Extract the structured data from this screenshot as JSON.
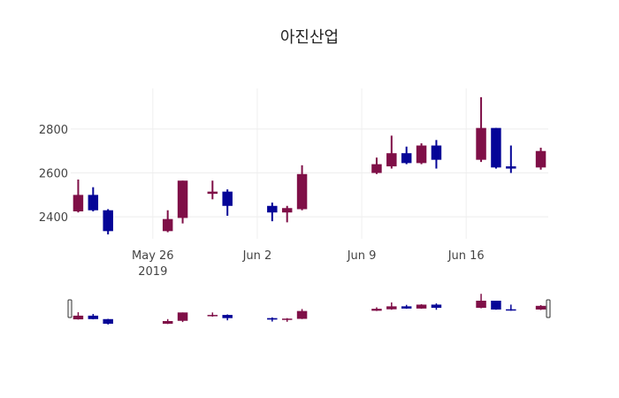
{
  "chart_data": {
    "type": "candlestick",
    "title": "아진산업",
    "x_ticks": [
      {
        "date": "2019-05-26",
        "label": "May 26",
        "sublabel": "2019"
      },
      {
        "date": "2019-06-02",
        "label": "Jun 2",
        "sublabel": ""
      },
      {
        "date": "2019-06-09",
        "label": "Jun 9",
        "sublabel": ""
      },
      {
        "date": "2019-06-16",
        "label": "Jun 16",
        "sublabel": ""
      }
    ],
    "y_ticks": [
      2400,
      2600,
      2800
    ],
    "ylim": [
      2300,
      2985
    ],
    "xlim": [
      "2019-05-20T12:00",
      "2019-06-21T12:00"
    ],
    "colors": {
      "increasing": "#7F0F47",
      "decreasing": "#050597",
      "grid": "#eeeeee"
    },
    "candles": [
      {
        "date": "2019-05-21",
        "open": 2425,
        "high": 2570,
        "low": 2420,
        "close": 2500
      },
      {
        "date": "2019-05-22",
        "open": 2500,
        "high": 2535,
        "low": 2425,
        "close": 2430
      },
      {
        "date": "2019-05-23",
        "open": 2430,
        "high": 2435,
        "low": 2320,
        "close": 2335
      },
      {
        "date": "2019-05-27",
        "open": 2335,
        "high": 2430,
        "low": 2330,
        "close": 2390
      },
      {
        "date": "2019-05-28",
        "open": 2395,
        "high": 2565,
        "low": 2370,
        "close": 2565
      },
      {
        "date": "2019-05-30",
        "open": 2505,
        "high": 2565,
        "low": 2480,
        "close": 2515
      },
      {
        "date": "2019-05-31",
        "open": 2515,
        "high": 2525,
        "low": 2405,
        "close": 2450
      },
      {
        "date": "2019-06-03",
        "open": 2450,
        "high": 2465,
        "low": 2380,
        "close": 2420
      },
      {
        "date": "2019-06-04",
        "open": 2420,
        "high": 2450,
        "low": 2375,
        "close": 2440
      },
      {
        "date": "2019-06-05",
        "open": 2435,
        "high": 2635,
        "low": 2430,
        "close": 2595
      },
      {
        "date": "2019-06-10",
        "open": 2600,
        "high": 2670,
        "low": 2595,
        "close": 2640
      },
      {
        "date": "2019-06-11",
        "open": 2630,
        "high": 2770,
        "low": 2620,
        "close": 2690
      },
      {
        "date": "2019-06-12",
        "open": 2690,
        "high": 2720,
        "low": 2640,
        "close": 2645
      },
      {
        "date": "2019-06-13",
        "open": 2645,
        "high": 2735,
        "low": 2640,
        "close": 2725
      },
      {
        "date": "2019-06-14",
        "open": 2725,
        "high": 2750,
        "low": 2620,
        "close": 2660
      },
      {
        "date": "2019-06-17",
        "open": 2660,
        "high": 2945,
        "low": 2650,
        "close": 2805
      },
      {
        "date": "2019-06-18",
        "open": 2805,
        "high": 2805,
        "low": 2620,
        "close": 2625
      },
      {
        "date": "2019-06-19",
        "open": 2630,
        "high": 2725,
        "low": 2600,
        "close": 2620
      },
      {
        "date": "2019-06-21",
        "open": 2625,
        "high": 2715,
        "low": 2615,
        "close": 2700
      }
    ],
    "rangeslider": true,
    "grid": true,
    "legend": false
  }
}
